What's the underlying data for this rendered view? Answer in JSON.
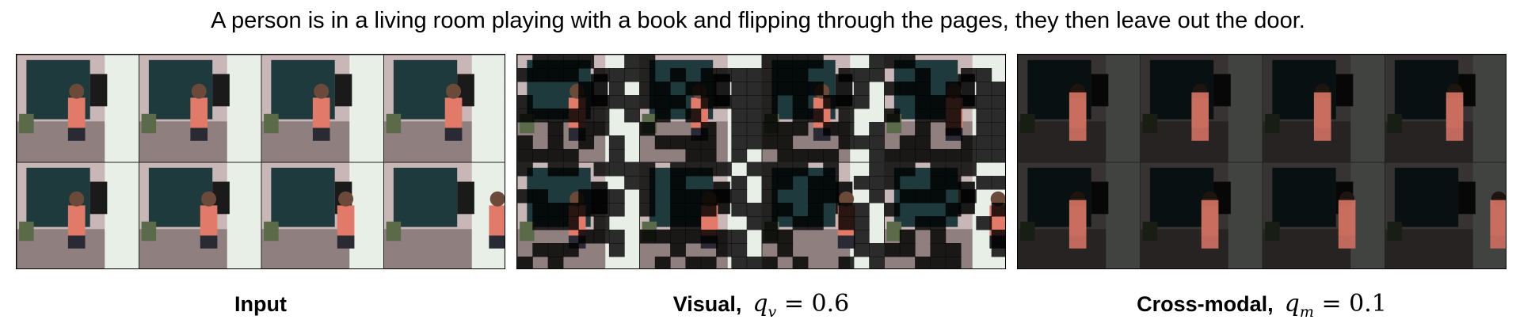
{
  "caption": "A person is in a living room playing with a book and flipping through the pages, they then leave out the door.",
  "panels": [
    {
      "name": "input",
      "label": "Input",
      "math": null,
      "rows": 2,
      "cols": 4
    },
    {
      "name": "visual",
      "label": "Visual,",
      "math": {
        "var": "q",
        "sub": "v",
        "value": "0.6"
      },
      "rows": 2,
      "cols": 4
    },
    {
      "name": "cross-modal",
      "label": "Cross-modal,",
      "math": {
        "var": "q",
        "sub": "m",
        "value": "0.1"
      },
      "rows": 2,
      "cols": 4
    }
  ],
  "colors": {
    "wall": "#c9b7b7",
    "tapestry": "#1f3a3d",
    "shelf": "#e8efe6",
    "person": "#e27a6a",
    "mask": "#000000"
  }
}
